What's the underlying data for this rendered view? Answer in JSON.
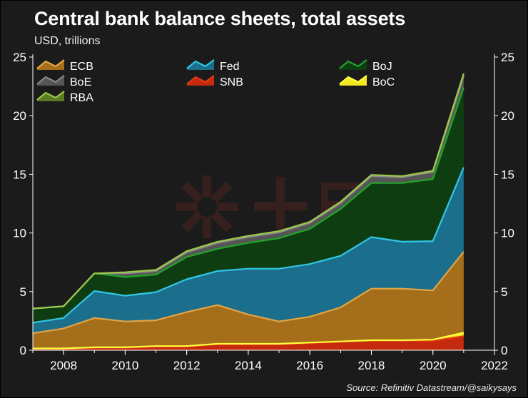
{
  "title": "Central bank balance sheets, total assets",
  "subtitle": "USD, trillions",
  "source": "Source: Refinitiv Datastream/@saikysays",
  "colors": {
    "SNB": "#c42a0e",
    "BoC": "#f5e81e",
    "ECB": "#a56e1a",
    "Fed": "#1b6e8c",
    "BoJ": "#0f3d12",
    "BoE": "#555555",
    "RBA": "#5d7a24"
  },
  "line_colors": {
    "SNB": "#e23a16",
    "BoC": "#ffff3c",
    "ECB": "#e3a547",
    "Fed": "#31c7e6",
    "BoJ": "#22a52a",
    "BoE": "#8a8a8a",
    "RBA": "#9cc84a"
  },
  "chart_data": {
    "type": "area",
    "stacked": true,
    "x": [
      2007,
      2008,
      2009,
      2010,
      2011,
      2012,
      2013,
      2014,
      2015,
      2016,
      2017,
      2018,
      2019,
      2020,
      2021
    ],
    "xlim": [
      2007,
      2022
    ],
    "ylim": [
      0,
      25
    ],
    "x_ticks": [
      2008,
      2010,
      2012,
      2014,
      2016,
      2018,
      2020,
      2022
    ],
    "y_ticks": [
      0,
      5,
      10,
      15,
      20,
      25
    ],
    "series": [
      {
        "name": "SNB",
        "values": [
          0.1,
          0.1,
          0.2,
          0.2,
          0.3,
          0.3,
          0.5,
          0.5,
          0.5,
          0.6,
          0.7,
          0.8,
          0.8,
          0.8,
          1.2
        ]
      },
      {
        "name": "BoC",
        "values": [
          0.05,
          0.05,
          0.05,
          0.05,
          0.05,
          0.05,
          0.05,
          0.05,
          0.05,
          0.05,
          0.05,
          0.05,
          0.05,
          0.1,
          0.3
        ]
      },
      {
        "name": "ECB",
        "values": [
          1.3,
          1.7,
          2.5,
          2.2,
          2.2,
          2.9,
          3.3,
          2.5,
          1.9,
          2.2,
          2.9,
          4.4,
          4.4,
          4.2,
          6.9
        ]
      },
      {
        "name": "Fed",
        "values": [
          0.9,
          0.9,
          2.3,
          2.2,
          2.4,
          2.8,
          2.9,
          3.9,
          4.5,
          4.5,
          4.4,
          4.4,
          4.0,
          4.2,
          7.2
        ]
      },
      {
        "name": "BoJ",
        "values": [
          1.2,
          1.0,
          1.5,
          1.6,
          1.5,
          1.9,
          1.9,
          2.2,
          2.6,
          3.0,
          4.0,
          4.6,
          5.0,
          5.3,
          6.8
        ]
      },
      {
        "name": "BoE",
        "values": [
          0.0,
          0.0,
          0.0,
          0.3,
          0.3,
          0.4,
          0.5,
          0.5,
          0.5,
          0.5,
          0.5,
          0.6,
          0.5,
          0.6,
          1.0
        ]
      },
      {
        "name": "RBA",
        "values": [
          0.0,
          0.0,
          0.0,
          0.1,
          0.1,
          0.1,
          0.1,
          0.1,
          0.1,
          0.1,
          0.1,
          0.1,
          0.1,
          0.1,
          0.2
        ]
      }
    ],
    "legend": {
      "placement": "top-left",
      "entries": [
        "ECB",
        "Fed",
        "BoJ",
        "BoE",
        "SNB",
        "BoC",
        "RBA"
      ]
    },
    "grid": false
  }
}
